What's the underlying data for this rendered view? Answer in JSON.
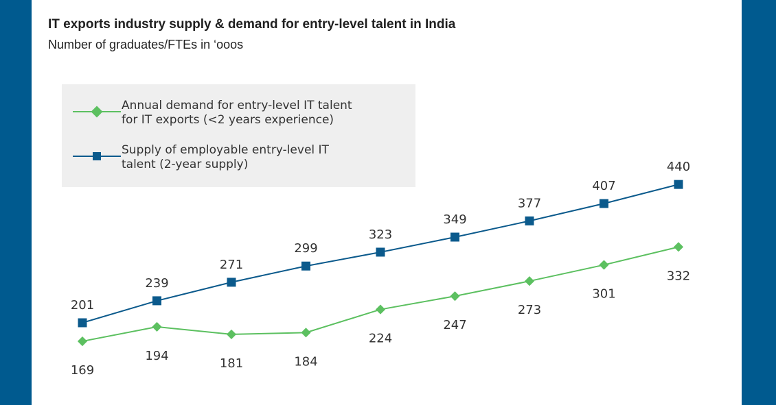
{
  "colors": {
    "background": "#005a8f",
    "panel": "#ffffff",
    "legend_bg": "#efefef",
    "demand": "#5cc060",
    "supply": "#0b5a8c"
  },
  "chart_data": {
    "type": "line",
    "title": "IT exports industry supply & demand for entry-level talent in India",
    "subtitle": "Number of graduates/FTEs in ‘ooos",
    "xlabel": "",
    "ylabel": "",
    "ylim": [
      120,
      460
    ],
    "grid": false,
    "legend_position": "top-left",
    "series": [
      {
        "name": "Annual demand for entry-level IT talent for IT exports (<2 years experience)",
        "legend_lines": [
          "Annual demand for entry-level IT talent",
          "for IT exports (<2 years experience)"
        ],
        "marker": "diamond",
        "color": "#5cc060",
        "label_position": "below",
        "values": [
          169,
          194,
          181,
          184,
          224,
          247,
          273,
          301,
          332
        ]
      },
      {
        "name": "Supply of employable entry-level IT talent (2-year supply)",
        "legend_lines": [
          "Supply  of employable entry-level IT",
          "talent (2-year supply)"
        ],
        "marker": "square",
        "color": "#0b5a8c",
        "label_position": "above",
        "values": [
          201,
          239,
          271,
          299,
          323,
          349,
          377,
          407,
          440
        ]
      }
    ]
  }
}
